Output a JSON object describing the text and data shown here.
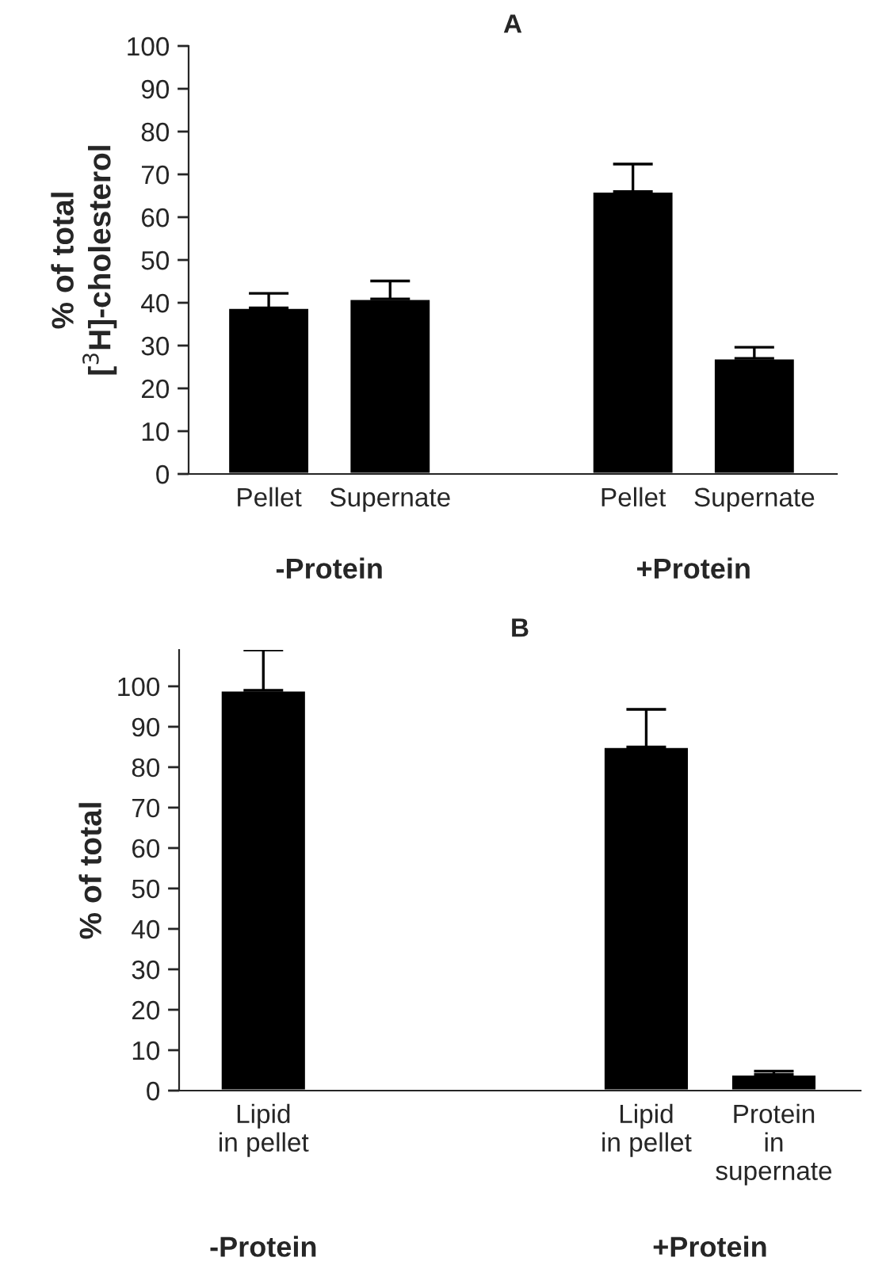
{
  "chart_data": [
    {
      "type": "bar",
      "title": "A",
      "ylabel": "% of total\n[$^{3}$H]-cholesterol",
      "categories": [
        "Pellet",
        "Supernate",
        null,
        "Pellet",
        "Supernate"
      ],
      "values": [
        38.8,
        40.9,
        null,
        66.0,
        27.0
      ],
      "errors": [
        [
          38.8,
          42.2
        ],
        [
          40.9,
          45.1
        ],
        null,
        [
          66.0,
          72.4
        ],
        [
          27.0,
          29.6
        ]
      ],
      "color": "#000000",
      "ylim": [
        0,
        100
      ],
      "yticks": [
        0,
        10,
        20,
        30,
        40,
        50,
        60,
        70,
        80,
        90,
        100
      ],
      "annotations": [
        "-Protein",
        "+Protein"
      ],
      "grid": false
    },
    {
      "type": "bar",
      "title": "B",
      "ylabel": "% of total",
      "categories": [
        "Lipid\nin pellet",
        null,
        null,
        "Lipid\nin pellet",
        "Protein\nin\nsupernate"
      ],
      "values": [
        99,
        null,
        null,
        85,
        4
      ],
      "errors": [
        [
          99,
          109
        ],
        null,
        null,
        [
          85,
          94.3
        ],
        [
          4,
          4.8
        ]
      ],
      "color": "#000000",
      "ylim": [
        0,
        109
      ],
      "yticks": [
        0,
        10,
        20,
        30,
        40,
        50,
        60,
        70,
        80,
        90,
        100
      ],
      "annotations": [
        "-Protein",
        "+Protein"
      ],
      "grid": false
    }
  ]
}
